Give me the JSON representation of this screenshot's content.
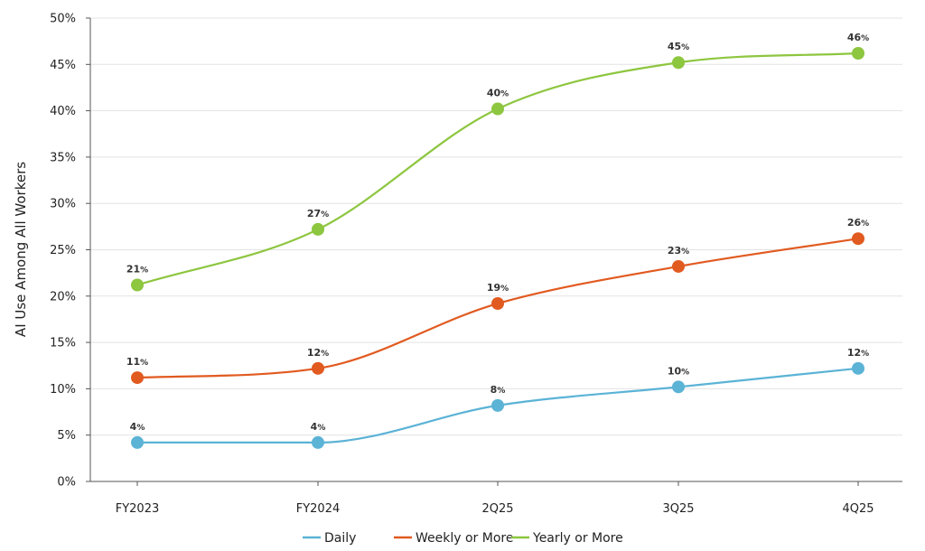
{
  "chart_data": {
    "type": "line",
    "title": "",
    "xlabel": "",
    "ylabel": "AI Use Among All Workers",
    "categories": [
      "FY2023",
      "FY2024",
      "2Q25",
      "3Q25",
      "4Q25"
    ],
    "ylim": [
      0,
      50
    ],
    "yticks": [
      "0%",
      "5%",
      "10%",
      "15%",
      "20%",
      "25%",
      "30%",
      "35%",
      "40%",
      "45%",
      "50%"
    ],
    "grid": true,
    "legend_position": "bottom",
    "series": [
      {
        "name": "Daily",
        "color": "#5BB3D6",
        "values": [
          4.2,
          4.2,
          8.2,
          10.2,
          12.2
        ],
        "labels": [
          "4",
          "4",
          "8",
          "10",
          "12"
        ]
      },
      {
        "name": "Weekly or More",
        "color": "#E15A20",
        "values": [
          11.2,
          12.2,
          19.2,
          23.2,
          26.2
        ],
        "labels": [
          "11",
          "12",
          "19",
          "23",
          "26"
        ]
      },
      {
        "name": "Yearly or More",
        "color": "#8DC63F",
        "values": [
          21.2,
          27.2,
          40.2,
          45.2,
          46.2
        ],
        "labels": [
          "21",
          "27",
          "40",
          "45",
          "46"
        ]
      }
    ],
    "percent_suffix": "%"
  }
}
